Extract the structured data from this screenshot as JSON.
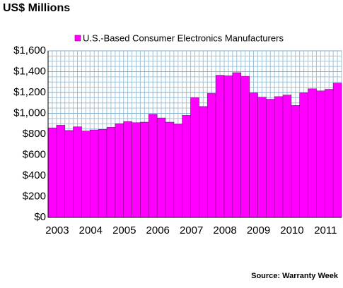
{
  "chart_data": {
    "type": "bar",
    "title": "US$ Millions",
    "source": "Source: Warranty Week",
    "categories": [
      "2003",
      null,
      null,
      null,
      "2004",
      null,
      null,
      null,
      "2005",
      null,
      null,
      null,
      "2006",
      null,
      null,
      null,
      "2007",
      null,
      null,
      null,
      "2008",
      null,
      null,
      null,
      "2009",
      null,
      null,
      null,
      "2010",
      null,
      null,
      null,
      "2011",
      null,
      null
    ],
    "series": [
      {
        "name": "U.S.-Based Consumer Electronics Manufacturers",
        "color": "#ff00ff",
        "values": [
          860,
          885,
          835,
          870,
          830,
          840,
          845,
          865,
          900,
          920,
          910,
          915,
          990,
          955,
          915,
          895,
          980,
          1150,
          1065,
          1190,
          1365,
          1360,
          1390,
          1355,
          1195,
          1155,
          1135,
          1160,
          1175,
          1075,
          1195,
          1235,
          1215,
          1230,
          1290
        ]
      }
    ],
    "ylim": [
      0,
      1600
    ],
    "yticks": [
      {
        "value": 0,
        "label": "$0"
      },
      {
        "value": 200,
        "label": "$200"
      },
      {
        "value": 400,
        "label": "$400"
      },
      {
        "value": 600,
        "label": "$600"
      },
      {
        "value": 800,
        "label": "$800"
      },
      {
        "value": 1000,
        "label": "$1,000"
      },
      {
        "value": 1200,
        "label": "$1,200"
      },
      {
        "value": 1400,
        "label": "$1,400"
      },
      {
        "value": 1600,
        "label": "$1,600"
      }
    ],
    "grid": true,
    "legend": "top"
  }
}
